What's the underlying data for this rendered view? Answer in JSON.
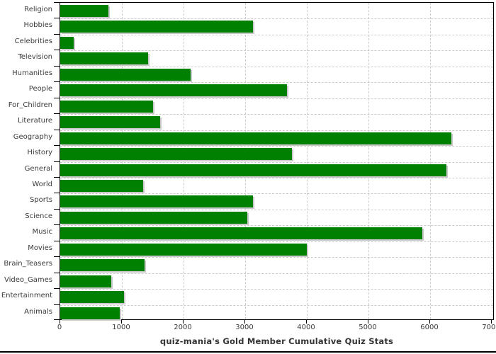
{
  "chart_data": {
    "type": "bar",
    "orientation": "horizontal",
    "title": "quiz-mania's Gold Member Cumulative Quiz Stats",
    "title_position": "bottom",
    "categories": [
      "Religion",
      "Hobbies",
      "Celebrities",
      "Television",
      "Humanities",
      "People",
      "For_Children",
      "Literature",
      "Geography",
      "History",
      "General",
      "World",
      "Sports",
      "Science",
      "Music",
      "Movies",
      "Brain_Teasers",
      "Video_Games",
      "Entertainment",
      "Animals"
    ],
    "values": [
      780,
      3130,
      215,
      1430,
      2120,
      3680,
      1500,
      1620,
      6340,
      3760,
      6260,
      1350,
      3130,
      3040,
      5870,
      4000,
      1370,
      830,
      1030,
      970
    ],
    "xlim": [
      0,
      7000
    ],
    "x_ticks": [
      0,
      1000,
      2000,
      3000,
      4000,
      5000,
      6000,
      7000
    ],
    "grid": "dashed-both-axes",
    "legend": "none",
    "colors": {
      "bar": "#008000",
      "bar_shadow": "#c9c9c9",
      "gridline": "#cccccc",
      "axis": "#000000",
      "text": "#3a3a3a",
      "background": "#ffffff"
    }
  }
}
